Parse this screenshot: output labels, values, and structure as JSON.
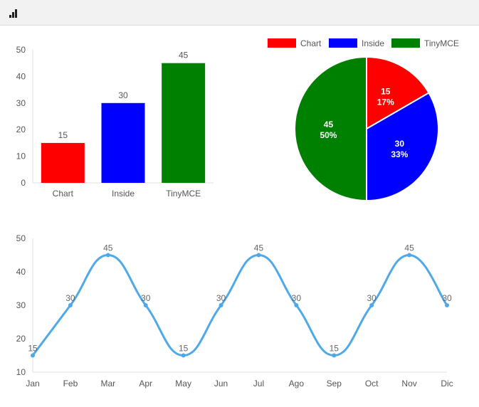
{
  "toolbar": {
    "chart_icon": "bar-chart-icon"
  },
  "chart_data": [
    {
      "type": "bar",
      "categories": [
        "Chart",
        "Inside",
        "TinyMCE"
      ],
      "values": [
        15,
        30,
        45
      ],
      "colors": [
        "#ff0000",
        "#0000ff",
        "#008000"
      ],
      "yticks": [
        0,
        10,
        20,
        30,
        40,
        50
      ],
      "ylim": [
        0,
        50
      ],
      "data_labels": true,
      "grid": false
    },
    {
      "type": "pie",
      "categories": [
        "Chart",
        "Inside",
        "TinyMCE"
      ],
      "values": [
        15,
        30,
        45
      ],
      "percent_labels": [
        "17%",
        "33%",
        "50%"
      ],
      "colors": [
        "#ff0000",
        "#0000ff",
        "#008000"
      ],
      "legend": "top"
    },
    {
      "type": "line",
      "categories": [
        "Jan",
        "Feb",
        "Mar",
        "Apr",
        "May",
        "Jun",
        "Jul",
        "Ago",
        "Sep",
        "Oct",
        "Nov",
        "Dic"
      ],
      "values": [
        15,
        30,
        45,
        30,
        15,
        30,
        45,
        30,
        15,
        30,
        45,
        30
      ],
      "color": "#4fa8e8",
      "yticks": [
        10,
        20,
        30,
        40,
        50
      ],
      "ylim": [
        10,
        50
      ],
      "smooth": true,
      "data_labels": true,
      "grid": false
    }
  ]
}
